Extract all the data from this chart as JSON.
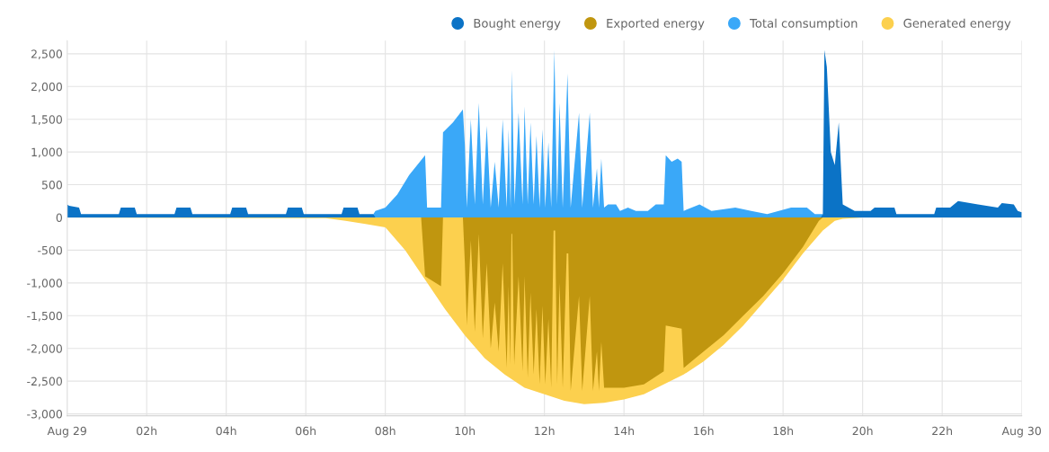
{
  "chart_data": {
    "type": "area",
    "legend": "top right",
    "grid": true,
    "xlim": [
      0,
      24
    ],
    "ylim": [
      -3030,
      2700
    ],
    "xticks": [
      {
        "value": 0,
        "label": "Aug 29"
      },
      {
        "value": 2,
        "label": "02h"
      },
      {
        "value": 4,
        "label": "04h"
      },
      {
        "value": 6,
        "label": "06h"
      },
      {
        "value": 8,
        "label": "08h"
      },
      {
        "value": 10,
        "label": "10h"
      },
      {
        "value": 12,
        "label": "12h"
      },
      {
        "value": 14,
        "label": "14h"
      },
      {
        "value": 16,
        "label": "16h"
      },
      {
        "value": 18,
        "label": "18h"
      },
      {
        "value": 20,
        "label": "20h"
      },
      {
        "value": 22,
        "label": "22h"
      },
      {
        "value": 24,
        "label": "Aug 30"
      }
    ],
    "yticks": [
      {
        "value": -3000,
        "label": "-3,000"
      },
      {
        "value": -2500,
        "label": "-2,500"
      },
      {
        "value": -2000,
        "label": "-2,000"
      },
      {
        "value": -1500,
        "label": "-1,500"
      },
      {
        "value": -1000,
        "label": "-1,000"
      },
      {
        "value": -500,
        "label": "-500"
      },
      0,
      500,
      {
        "value": 1000,
        "label": "1,000"
      },
      {
        "value": 1500,
        "label": "1,500"
      },
      {
        "value": 2000,
        "label": "2,000"
      },
      {
        "value": 2500,
        "label": "2,500"
      }
    ],
    "series": [
      {
        "name": "Generated energy",
        "color": "#fcd04e",
        "x": [
          0,
          6.5,
          7.0,
          7.5,
          8.0,
          8.5,
          9.0,
          9.5,
          10.0,
          10.5,
          11.0,
          11.5,
          12.0,
          12.5,
          13.0,
          13.5,
          14.0,
          14.5,
          15.0,
          15.5,
          16.0,
          16.5,
          17.0,
          17.5,
          18.0,
          18.5,
          19.0,
          19.3,
          19.5,
          20.0,
          24
        ],
        "values": [
          0,
          -10,
          -50,
          -100,
          -150,
          -500,
          -950,
          -1400,
          -1800,
          -2150,
          -2400,
          -2600,
          -2700,
          -2800,
          -2850,
          -2830,
          -2780,
          -2700,
          -2550,
          -2400,
          -2200,
          -1950,
          -1650,
          -1300,
          -950,
          -550,
          -200,
          -50,
          -20,
          0,
          0
        ]
      },
      {
        "name": "Exported energy",
        "color": "#c0960f",
        "x": [
          0,
          8.9,
          9.0,
          9.4,
          9.45,
          9.95,
          10.0,
          10.05,
          10.15,
          10.25,
          10.35,
          10.45,
          10.55,
          10.65,
          10.75,
          10.85,
          10.95,
          11.05,
          11.1,
          11.14,
          11.17,
          11.19,
          11.24,
          11.35,
          11.45,
          11.5,
          11.58,
          11.65,
          11.73,
          11.8,
          11.88,
          11.95,
          12.02,
          12.1,
          12.17,
          12.23,
          12.27,
          12.32,
          12.38,
          12.46,
          12.56,
          12.6,
          12.66,
          12.87,
          12.95,
          13.14,
          13.22,
          13.32,
          13.37,
          13.43,
          13.5,
          14.0,
          14.5,
          15.0,
          15.05,
          15.45,
          15.5,
          16.0,
          16.5,
          17.0,
          17.5,
          18.0,
          18.5,
          18.9,
          19.0,
          24
        ],
        "values": [
          0,
          0,
          -900,
          -1050,
          0,
          0,
          -700,
          -1650,
          -350,
          -1750,
          -250,
          -1850,
          -700,
          -2000,
          -1300,
          -2050,
          -700,
          -2300,
          -1050,
          -2250,
          -250,
          -250,
          -2250,
          -900,
          -2350,
          -900,
          -2450,
          -1150,
          -2400,
          -1400,
          -2550,
          -1350,
          -2550,
          -1550,
          -2600,
          -200,
          -200,
          -2550,
          -1000,
          -2600,
          -550,
          -550,
          -2650,
          -1200,
          -2650,
          -1200,
          -2650,
          -2050,
          -2650,
          -1900,
          -2600,
          -2600,
          -2550,
          -2350,
          -1650,
          -1700,
          -2300,
          -2050,
          -1800,
          -1500,
          -1200,
          -850,
          -450,
          -50,
          0,
          0
        ]
      },
      {
        "name": "Total consumption",
        "color": "#3aa8f8",
        "x": [
          7.7,
          7.75,
          8.0,
          8.3,
          8.6,
          9.0,
          9.05,
          9.4,
          9.45,
          9.7,
          9.95,
          10.0,
          10.05,
          10.15,
          10.25,
          10.35,
          10.45,
          10.55,
          10.65,
          10.75,
          10.85,
          10.95,
          11.05,
          11.1,
          11.15,
          11.18,
          11.25,
          11.35,
          11.45,
          11.5,
          11.58,
          11.65,
          11.73,
          11.8,
          11.88,
          11.95,
          12.02,
          12.1,
          12.17,
          12.25,
          12.32,
          12.38,
          12.46,
          12.58,
          12.66,
          12.87,
          12.95,
          13.14,
          13.22,
          13.32,
          13.37,
          13.43,
          13.5,
          13.6,
          13.8,
          13.9,
          14.1,
          14.3,
          14.6,
          14.8,
          15.0,
          15.05,
          15.2,
          15.35,
          15.45,
          15.5,
          15.9,
          16.2,
          16.8,
          17.2,
          17.6,
          18.2,
          18.6,
          18.8,
          19.0
        ],
        "values": [
          50,
          100,
          150,
          350,
          650,
          950,
          150,
          150,
          1300,
          1450,
          1650,
          1100,
          150,
          1500,
          200,
          1750,
          200,
          1400,
          150,
          850,
          150,
          1500,
          150,
          1350,
          150,
          2250,
          200,
          1600,
          200,
          1700,
          200,
          1450,
          200,
          1250,
          150,
          1350,
          150,
          1150,
          150,
          2560,
          200,
          1750,
          150,
          2200,
          150,
          1600,
          150,
          1600,
          150,
          750,
          150,
          900,
          150,
          200,
          200,
          100,
          150,
          100,
          100,
          200,
          200,
          950,
          850,
          900,
          850,
          100,
          200,
          100,
          150,
          100,
          50,
          150,
          150,
          50,
          50
        ]
      },
      {
        "name": "Bought energy",
        "color": "#0b73c6",
        "x": [
          0,
          0.05,
          0.3,
          0.35,
          1.3,
          1.35,
          1.7,
          1.75,
          2.7,
          2.75,
          3.1,
          3.15,
          4.1,
          4.15,
          4.5,
          4.55,
          5.5,
          5.55,
          5.9,
          5.95,
          6.9,
          6.95,
          7.3,
          7.35,
          7.7,
          7.75,
          18.95,
          19.0,
          19.04,
          19.1,
          19.2,
          19.3,
          19.4,
          19.5,
          19.8,
          20.2,
          20.3,
          20.8,
          20.85,
          21.8,
          21.85,
          22.2,
          22.4,
          22.9,
          23.4,
          23.5,
          23.8,
          23.9,
          24
        ],
        "values": [
          200,
          180,
          150,
          50,
          50,
          150,
          150,
          50,
          50,
          150,
          150,
          50,
          50,
          150,
          150,
          50,
          50,
          150,
          150,
          50,
          50,
          150,
          150,
          50,
          50,
          0,
          0,
          50,
          2560,
          2300,
          1000,
          800,
          1450,
          200,
          100,
          100,
          150,
          150,
          50,
          50,
          150,
          150,
          250,
          200,
          150,
          220,
          200,
          100,
          80
        ]
      }
    ]
  }
}
